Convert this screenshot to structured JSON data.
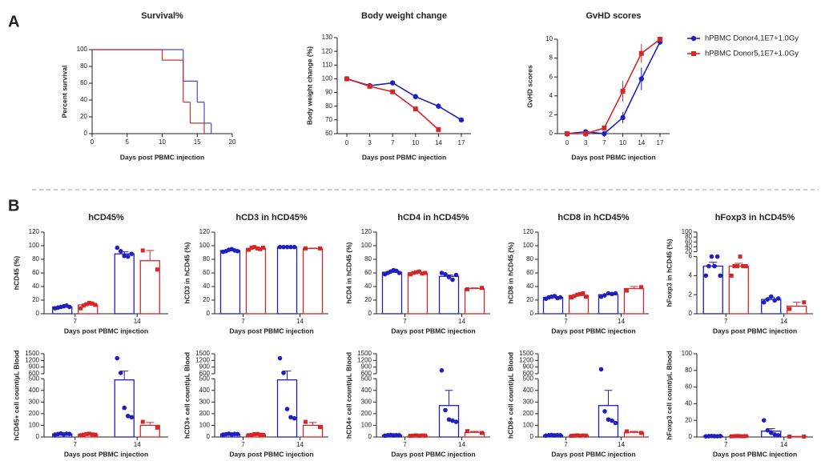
{
  "panel_labels": [
    "A",
    "B"
  ],
  "chart_data": [
    {
      "type": "step",
      "title": "Survival%",
      "xlabel": "Days post PBMC injection",
      "ylabel": "Percent survival",
      "xlim": [
        0,
        20
      ],
      "xticks": [
        0,
        5,
        10,
        15,
        20
      ],
      "ylim": [
        0,
        100
      ],
      "yticks": [
        0,
        20,
        40,
        60,
        80,
        100
      ],
      "series": [
        {
          "color": "#4b4bc8",
          "x": [
            0,
            13,
            15,
            16,
            17
          ],
          "values": [
            100,
            62.5,
            37.5,
            12.5,
            0
          ]
        },
        {
          "color": "#c83232",
          "x": [
            0,
            10,
            13,
            14,
            16
          ],
          "values": [
            100,
            87.5,
            37.5,
            12.5,
            0
          ]
        }
      ]
    },
    {
      "type": "line",
      "title": "Body weight change",
      "xlabel": "Days post PBMC injection",
      "ylabel": "Body weight change (%)",
      "categories": [
        "0",
        "3",
        "7",
        "10",
        "14",
        "17"
      ],
      "ylim": [
        60,
        130
      ],
      "yticks": [
        60,
        70,
        80,
        90,
        100,
        110,
        120,
        130
      ],
      "series": [
        {
          "color": "#1f1fbf",
          "marker": "circle",
          "values": [
            100,
            95,
            97,
            87,
            80,
            70
          ],
          "errors": [
            1,
            1,
            1,
            2,
            2,
            0.5
          ]
        },
        {
          "color": "#d62728",
          "marker": "square",
          "values": [
            100,
            94.5,
            90.5,
            78,
            63,
            null
          ],
          "errors": [
            1,
            1,
            1,
            1,
            0.5,
            null
          ]
        }
      ]
    },
    {
      "type": "line",
      "title": "GvHD scores",
      "xlabel": "Days post PBMC injection",
      "ylabel": "GvHD scores",
      "categories": [
        "0",
        "3",
        "7",
        "10",
        "14",
        "17"
      ],
      "ylim": [
        0,
        10
      ],
      "yticks": [
        0,
        2,
        4,
        6,
        8,
        10
      ],
      "series": [
        {
          "name": "hPBMC Donor4,1E7+1.0Gy",
          "color": "#1f1fbf",
          "marker": "circle",
          "values": [
            0,
            0.2,
            0,
            1.7,
            5.8,
            9.7
          ],
          "errors": [
            0,
            0.1,
            0,
            0.6,
            1.2,
            0.3
          ]
        },
        {
          "name": "hPBMC Donor5,1E7+1.0Gy",
          "color": "#d62728",
          "marker": "square",
          "values": [
            0,
            0,
            0.6,
            4.5,
            8.5,
            10
          ],
          "errors": [
            0,
            0,
            0.1,
            1.1,
            1,
            0.2
          ]
        }
      ]
    },
    {
      "type": "dotbar",
      "title": "hCD45%",
      "ylabel": "hCD45 (%)",
      "xlabel": "Days post PBMC injection",
      "categories": [
        "7",
        "14"
      ],
      "ylim": [
        0,
        120
      ],
      "yticks": [
        0,
        20,
        40,
        60,
        80,
        100,
        120
      ],
      "series": [
        {
          "color": "#1f1fbf",
          "values": [
            10,
            88
          ],
          "errors": [
            1,
            3
          ],
          "points": [
            [
              8,
              9,
              10,
              11,
              12,
              10
            ],
            [
              97,
              92,
              85,
              84,
              88
            ]
          ]
        },
        {
          "color": "#d62728",
          "values": [
            13,
            78
          ],
          "errors": [
            1.5,
            15
          ],
          "points": [
            [
              8,
              12,
              14,
              16,
              15,
              13
            ],
            [
              93,
              65
            ]
          ]
        }
      ]
    },
    {
      "type": "dotbar",
      "title": "hCD3 in hCD45%",
      "ylabel": "hCD3 in hCD45 (%)",
      "xlabel": "Days post PBMC injection",
      "categories": [
        "7",
        "14"
      ],
      "ylim": [
        0,
        120
      ],
      "yticks": [
        0,
        20,
        40,
        60,
        80,
        100,
        120
      ],
      "series": [
        {
          "color": "#1f1fbf",
          "values": [
            93,
            98
          ],
          "errors": [
            1,
            0.5
          ],
          "points": [
            [
              91,
              92,
              94,
              95,
              93,
              92
            ],
            [
              98,
              98,
              98,
              98,
              98
            ]
          ]
        },
        {
          "color": "#d62728",
          "values": [
            96,
            96
          ],
          "errors": [
            1,
            0.5
          ],
          "points": [
            [
              94,
              97,
              98,
              96,
              95,
              97
            ],
            [
              96,
              96
            ]
          ]
        }
      ]
    },
    {
      "type": "dotbar",
      "title": "hCD4 in hCD45%",
      "ylabel": "hCD4 in hCD45 (%)",
      "xlabel": "Days post PBMC injection",
      "categories": [
        "7",
        "14"
      ],
      "ylim": [
        0,
        120
      ],
      "yticks": [
        0,
        20,
        40,
        60,
        80,
        100,
        120
      ],
      "series": [
        {
          "color": "#1f1fbf",
          "values": [
            61,
            55
          ],
          "errors": [
            1,
            2
          ],
          "points": [
            [
              58,
              60,
              62,
              64,
              63,
              60
            ],
            [
              60,
              58,
              54,
              50,
              57
            ]
          ]
        },
        {
          "color": "#d62728",
          "values": [
            60,
            37
          ],
          "errors": [
            1,
            1
          ],
          "points": [
            [
              58,
              60,
              61,
              62,
              59,
              60
            ],
            [
              36,
              38
            ]
          ]
        }
      ]
    },
    {
      "type": "dotbar",
      "title": "hCD8 in hCD45%",
      "ylabel": "hCD8 in hCD45 (%)",
      "xlabel": "Days post PBMC injection",
      "categories": [
        "7",
        "14"
      ],
      "ylim": [
        0,
        120
      ],
      "yticks": [
        0,
        20,
        40,
        60,
        80,
        100,
        120
      ],
      "series": [
        {
          "color": "#1f1fbf",
          "values": [
            24,
            28
          ],
          "errors": [
            1,
            1
          ],
          "points": [
            [
              22,
              24,
              25,
              26,
              23,
              24
            ],
            [
              25,
              27,
              30,
              29,
              30
            ]
          ]
        },
        {
          "color": "#d62728",
          "values": [
            27,
            37
          ],
          "errors": [
            1,
            3
          ],
          "points": [
            [
              24,
              26,
              28,
              29,
              30,
              25
            ],
            [
              34,
              39
            ]
          ]
        }
      ]
    },
    {
      "type": "dotbar",
      "title": "hFoxp3 in hCD45%",
      "ylabel": "hFoxp3 in hCD45 (%)",
      "xlabel": "Days post PBMC injection",
      "categories": [
        "7",
        "14"
      ],
      "ylim": [
        0,
        100
      ],
      "ybreak": [
        6,
        20
      ],
      "yticks": [
        0,
        2,
        4,
        6,
        20,
        40,
        60,
        80,
        100
      ],
      "series": [
        {
          "color": "#1f1fbf",
          "values": [
            5,
            1.5
          ],
          "errors": [
            0.4,
            0.2
          ],
          "points": [
            [
              4,
              5,
              6,
              5,
              6,
              4
            ],
            [
              1.2,
              1.5,
              1.8,
              1.4,
              1.6
            ]
          ]
        },
        {
          "color": "#d62728",
          "values": [
            5,
            0.8
          ],
          "errors": [
            0.3,
            0.4
          ],
          "points": [
            [
              4,
              5,
              5,
              6,
              5,
              5
            ],
            [
              0.5,
              1.2
            ]
          ]
        }
      ]
    },
    {
      "type": "dotbar",
      "ylabel": "hCD45+ cell count/μL Blood",
      "xlabel": "Days post PBMC injection",
      "categories": [
        "7",
        "14"
      ],
      "ylim": [
        0,
        1500
      ],
      "ybreak": [
        500,
        600
      ],
      "yticks": [
        0,
        100,
        200,
        300,
        400,
        500,
        600,
        900,
        1200,
        1500
      ],
      "series": [
        {
          "color": "#1f1fbf",
          "values": [
            25,
            490
          ],
          "errors": [
            3,
            230
          ],
          "points": [
            [
              20,
              25,
              30,
              22,
              28,
              26
            ],
            [
              1300,
              640,
              250,
              180,
              170
            ]
          ]
        },
        {
          "color": "#d62728",
          "values": [
            22,
            100
          ],
          "errors": [
            3,
            25
          ],
          "points": [
            [
              15,
              20,
              25,
              28,
              22,
              20
            ],
            [
              130,
              80
            ]
          ]
        }
      ]
    },
    {
      "type": "dotbar",
      "ylabel": "hCD3+ cell count/μL Blood",
      "xlabel": "Days post PBMC injection",
      "categories": [
        "7",
        "14"
      ],
      "ylim": [
        0,
        1500
      ],
      "ybreak": [
        500,
        600
      ],
      "yticks": [
        0,
        100,
        200,
        300,
        400,
        500,
        600,
        900,
        1200,
        1500
      ],
      "series": [
        {
          "color": "#1f1fbf",
          "values": [
            25,
            490
          ],
          "errors": [
            3,
            230
          ],
          "points": [
            [
              20,
              24,
              28,
              22,
              26,
              25
            ],
            [
              1300,
              640,
              240,
              170,
              160
            ]
          ]
        },
        {
          "color": "#d62728",
          "values": [
            20,
            100
          ],
          "errors": [
            3,
            25
          ],
          "points": [
            [
              15,
              18,
              24,
              26,
              20,
              18
            ],
            [
              130,
              85
            ]
          ]
        }
      ]
    },
    {
      "type": "dotbar",
      "ylabel": "hCD4+ cell count/μL Blood",
      "xlabel": "Days post PBMC injection",
      "categories": [
        "7",
        "14"
      ],
      "ylim": [
        0,
        1500
      ],
      "ybreak": [
        500,
        600
      ],
      "yticks": [
        0,
        100,
        200,
        300,
        400,
        500,
        600,
        900,
        1200,
        1500
      ],
      "series": [
        {
          "color": "#1f1fbf",
          "values": [
            15,
            270
          ],
          "errors": [
            2,
            130
          ],
          "points": [
            [
              12,
              15,
              18,
              14,
              16,
              15
            ],
            [
              750,
              230,
              150,
              140,
              130
            ]
          ]
        },
        {
          "color": "#d62728",
          "values": [
            12,
            40
          ],
          "errors": [
            2,
            8
          ],
          "points": [
            [
              10,
              12,
              14,
              11,
              13,
              12
            ],
            [
              50,
              35
            ]
          ]
        }
      ]
    },
    {
      "type": "dotbar",
      "ylabel": "hCD8+ cell count/μL Blood",
      "xlabel": "Days post PBMC injection",
      "categories": [
        "7",
        "14"
      ],
      "ylim": [
        0,
        1500
      ],
      "ybreak": [
        500,
        600
      ],
      "yticks": [
        0,
        100,
        200,
        300,
        400,
        500,
        600,
        900,
        1200,
        1500
      ],
      "series": [
        {
          "color": "#1f1fbf",
          "values": [
            15,
            270
          ],
          "errors": [
            2,
            130
          ],
          "points": [
            [
              12,
              15,
              18,
              14,
              16,
              15
            ],
            [
              800,
              220,
              150,
              140,
              120
            ]
          ]
        },
        {
          "color": "#d62728",
          "values": [
            12,
            40
          ],
          "errors": [
            2,
            8
          ],
          "points": [
            [
              10,
              12,
              14,
              11,
              13,
              12
            ],
            [
              48,
              35
            ]
          ]
        }
      ]
    },
    {
      "type": "dotbar",
      "ylabel": "hFoxp3 cell count/μL Blood",
      "xlabel": "Days post PBMC injection",
      "categories": [
        "7",
        "14"
      ],
      "ylim": [
        0,
        100
      ],
      "yticks": [
        0,
        20,
        40,
        60,
        80,
        100
      ],
      "series": [
        {
          "color": "#1f1fbf",
          "values": [
            1,
            7
          ],
          "errors": [
            0.3,
            3
          ],
          "points": [
            [
              0.8,
              1,
              1.2,
              1,
              0.9,
              1.1
            ],
            [
              20,
              8,
              5,
              3,
              2
            ]
          ]
        },
        {
          "color": "#d62728",
          "values": [
            1,
            0.5
          ],
          "errors": [
            0.3,
            0.2
          ],
          "points": [
            [
              0.8,
              1,
              1.2,
              1,
              0.9,
              1.1
            ],
            [
              0.5,
              0.5
            ]
          ]
        }
      ]
    }
  ]
}
